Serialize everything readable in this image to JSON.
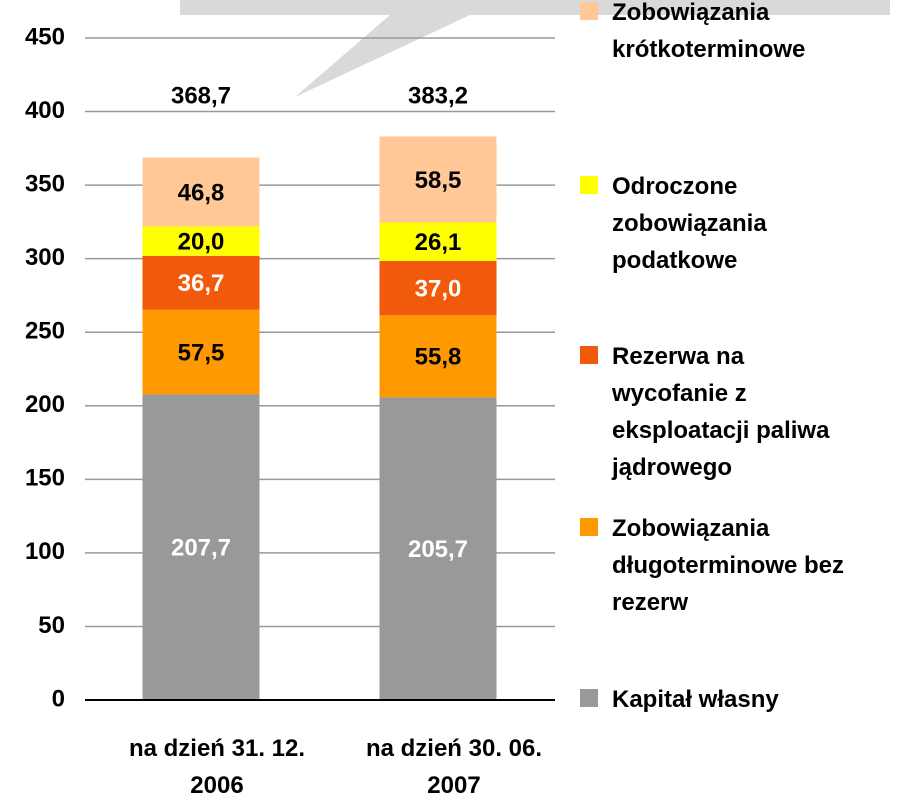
{
  "chart_data": {
    "type": "stacked_bar",
    "categories": [
      "na dzień 31. 12.\n2006",
      "na dzień 30. 06.\n2007"
    ],
    "total_labels": [
      "368,7",
      "383,2"
    ],
    "series": [
      {
        "name": "Kapitał własny",
        "color": "#999999",
        "label_color": "#ffffff",
        "values": [
          207.7,
          205.7
        ],
        "value_labels": [
          "207,7",
          "205,7"
        ]
      },
      {
        "name": "Zobowiązania\ndługoterminowe bez\nrezerw",
        "color": "#ff9900",
        "label_color": "#000000",
        "values": [
          57.5,
          55.8
        ],
        "value_labels": [
          "57,5",
          "55,8"
        ]
      },
      {
        "name": "Rezerwa na\nwycofanie z\neksploatacji paliwa\njądrowego",
        "color": "#f05a0a",
        "label_color": "#ffffff",
        "values": [
          36.7,
          37.0
        ],
        "value_labels": [
          "36,7",
          "37,0"
        ]
      },
      {
        "name": "Odroczone\nzobowiązania\npodatkowe",
        "color": "#ffff00",
        "label_color": "#000000",
        "values": [
          20.0,
          26.1
        ],
        "value_labels": [
          "20,0",
          "26,1"
        ]
      },
      {
        "name": "Zobowiązania\nkrótkoterminowe",
        "color": "#ffc896",
        "label_color": "#000000",
        "values": [
          46.8,
          58.5
        ],
        "value_labels": [
          "46,8",
          "58,5"
        ]
      }
    ],
    "ylim": [
      0,
      450
    ],
    "yticks": [
      0,
      50,
      100,
      150,
      200,
      250,
      300,
      350,
      400,
      450
    ],
    "grid": true
  }
}
